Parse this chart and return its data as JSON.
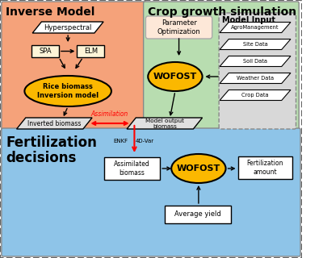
{
  "bg_color": "#ffffff",
  "salmon_bg": "#f5a27a",
  "green_bg": "#b8ddb0",
  "blue_bg": "#8ec4e8",
  "gray_input_bg": "#d8d8d8",
  "orange_fill": "#fbb800",
  "white_fill": "#ffffff",
  "cream_fill": "#fdf5d8",
  "section_titles": {
    "inverse": "Inverse Model",
    "crop": "Crop growth simulation",
    "fertilization": "Fertilization\ndecisions",
    "model_input": "Model Input"
  },
  "boxes": {
    "hyperspectral": "Hyperspectral",
    "spa": "SPA",
    "elm": "ELM",
    "rice_biomass": "Rice biomass\nInversion model",
    "param_opt": "Parameter\nOptimization",
    "wofost_top": "WOFOST",
    "inverted_biomass": "Inverted biomass",
    "model_output": "Model output\nbiomass",
    "assimilated": "Assimilated\nbiomass",
    "wofost_bottom": "WOFOST",
    "fertilization_amount": "Fertilization\namount",
    "average_yield": "Average yield",
    "agro": "AgroManagement",
    "site": "Site Data",
    "soil": "Soil Data",
    "weather": "Weather Data",
    "crop_data": "Crop Data"
  },
  "labels": {
    "assimilation": "Assimilation",
    "enkf": "ENKF",
    "var4d": "4D-Var"
  }
}
